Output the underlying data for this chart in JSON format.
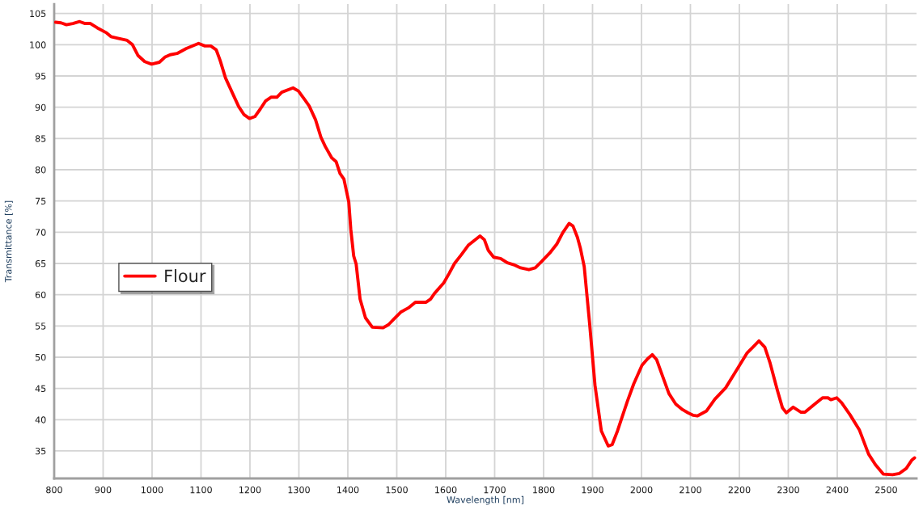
{
  "chart_data": {
    "type": "line",
    "xlabel": "Wavelength [nm]",
    "ylabel": "Transmittance [%]",
    "x": [
      803,
      814,
      825,
      838,
      852,
      863,
      874,
      888,
      907,
      916,
      932,
      949,
      960,
      971,
      985,
      999,
      1015,
      1026,
      1037,
      1051,
      1070,
      1095,
      1108,
      1120,
      1131,
      1139,
      1150,
      1164,
      1177,
      1188,
      1199,
      1210,
      1221,
      1232,
      1243,
      1255,
      1265,
      1288,
      1299,
      1312,
      1321,
      1334,
      1345,
      1354,
      1367,
      1376,
      1384,
      1392,
      1402,
      1406,
      1412,
      1417,
      1425,
      1436,
      1450,
      1472,
      1483,
      1494,
      1508,
      1524,
      1538,
      1560,
      1569,
      1577,
      1596,
      1607,
      1618,
      1632,
      1646,
      1657,
      1670,
      1679,
      1687,
      1698,
      1712,
      1726,
      1739,
      1753,
      1770,
      1783,
      1797,
      1814,
      1827,
      1839,
      1852,
      1860,
      1869,
      1875,
      1883,
      1894,
      1905,
      1918,
      1932,
      1940,
      1951,
      1962,
      1971,
      1984,
      2001,
      2012,
      2022,
      2031,
      2042,
      2056,
      2070,
      2084,
      2095,
      2106,
      2114,
      2133,
      2150,
      2172,
      2194,
      2216,
      2230,
      2240,
      2252,
      2263,
      2277,
      2288,
      2296,
      2310,
      2326,
      2334,
      2354,
      2370,
      2381,
      2387,
      2399,
      2409,
      2426,
      2445,
      2464,
      2478,
      2494,
      2513,
      2527,
      2541,
      2552,
      2558
    ],
    "series": [
      {
        "name": "Flour",
        "color": "#ff0000",
        "values": [
          103.6,
          103.5,
          103.2,
          103.4,
          103.7,
          103.4,
          103.4,
          102.7,
          101.9,
          101.3,
          101.0,
          100.7,
          100.0,
          98.3,
          97.3,
          96.9,
          97.2,
          98.0,
          98.4,
          98.6,
          99.4,
          100.2,
          99.8,
          99.8,
          99.2,
          97.5,
          94.7,
          92.3,
          90.1,
          88.8,
          88.2,
          88.5,
          89.7,
          91.0,
          91.6,
          91.6,
          92.4,
          93.1,
          92.6,
          91.2,
          90.2,
          88.0,
          85.2,
          83.7,
          81.9,
          81.3,
          79.4,
          78.5,
          74.8,
          70.5,
          66.2,
          64.9,
          59.3,
          56.3,
          54.8,
          54.7,
          55.2,
          56.1,
          57.2,
          57.9,
          58.8,
          58.8,
          59.3,
          60.2,
          61.9,
          63.4,
          65.0,
          66.4,
          67.9,
          68.6,
          69.4,
          68.8,
          67.1,
          66.0,
          65.8,
          65.1,
          64.8,
          64.3,
          64.0,
          64.3,
          65.4,
          66.8,
          68.1,
          69.9,
          71.4,
          71.0,
          69.2,
          67.5,
          64.5,
          55.4,
          45.5,
          38.2,
          35.8,
          36.0,
          38.2,
          40.8,
          42.9,
          45.7,
          48.7,
          49.7,
          50.4,
          49.6,
          47.2,
          44.2,
          42.5,
          41.6,
          41.1,
          40.7,
          40.6,
          41.4,
          43.3,
          45.1,
          47.9,
          50.7,
          51.8,
          52.6,
          51.6,
          49.0,
          44.9,
          41.9,
          41.1,
          42.0,
          41.2,
          41.2,
          42.5,
          43.5,
          43.5,
          43.2,
          43.5,
          42.7,
          40.8,
          38.4,
          34.5,
          32.8,
          31.3,
          31.2,
          31.4,
          32.2,
          33.5,
          33.9
        ]
      }
    ],
    "xlim": [
      800,
      2562
    ],
    "ylim": [
      30.6,
      106.5
    ],
    "xticks": [
      800,
      900,
      1000,
      1100,
      1200,
      1300,
      1400,
      1500,
      1600,
      1700,
      1800,
      1900,
      2000,
      2100,
      2200,
      2300,
      2400,
      2500
    ],
    "yticks": [
      35,
      40,
      45,
      50,
      55,
      60,
      65,
      70,
      75,
      80,
      85,
      90,
      95,
      100,
      105
    ],
    "grid": true,
    "legend": "left",
    "line_style": "solid"
  }
}
